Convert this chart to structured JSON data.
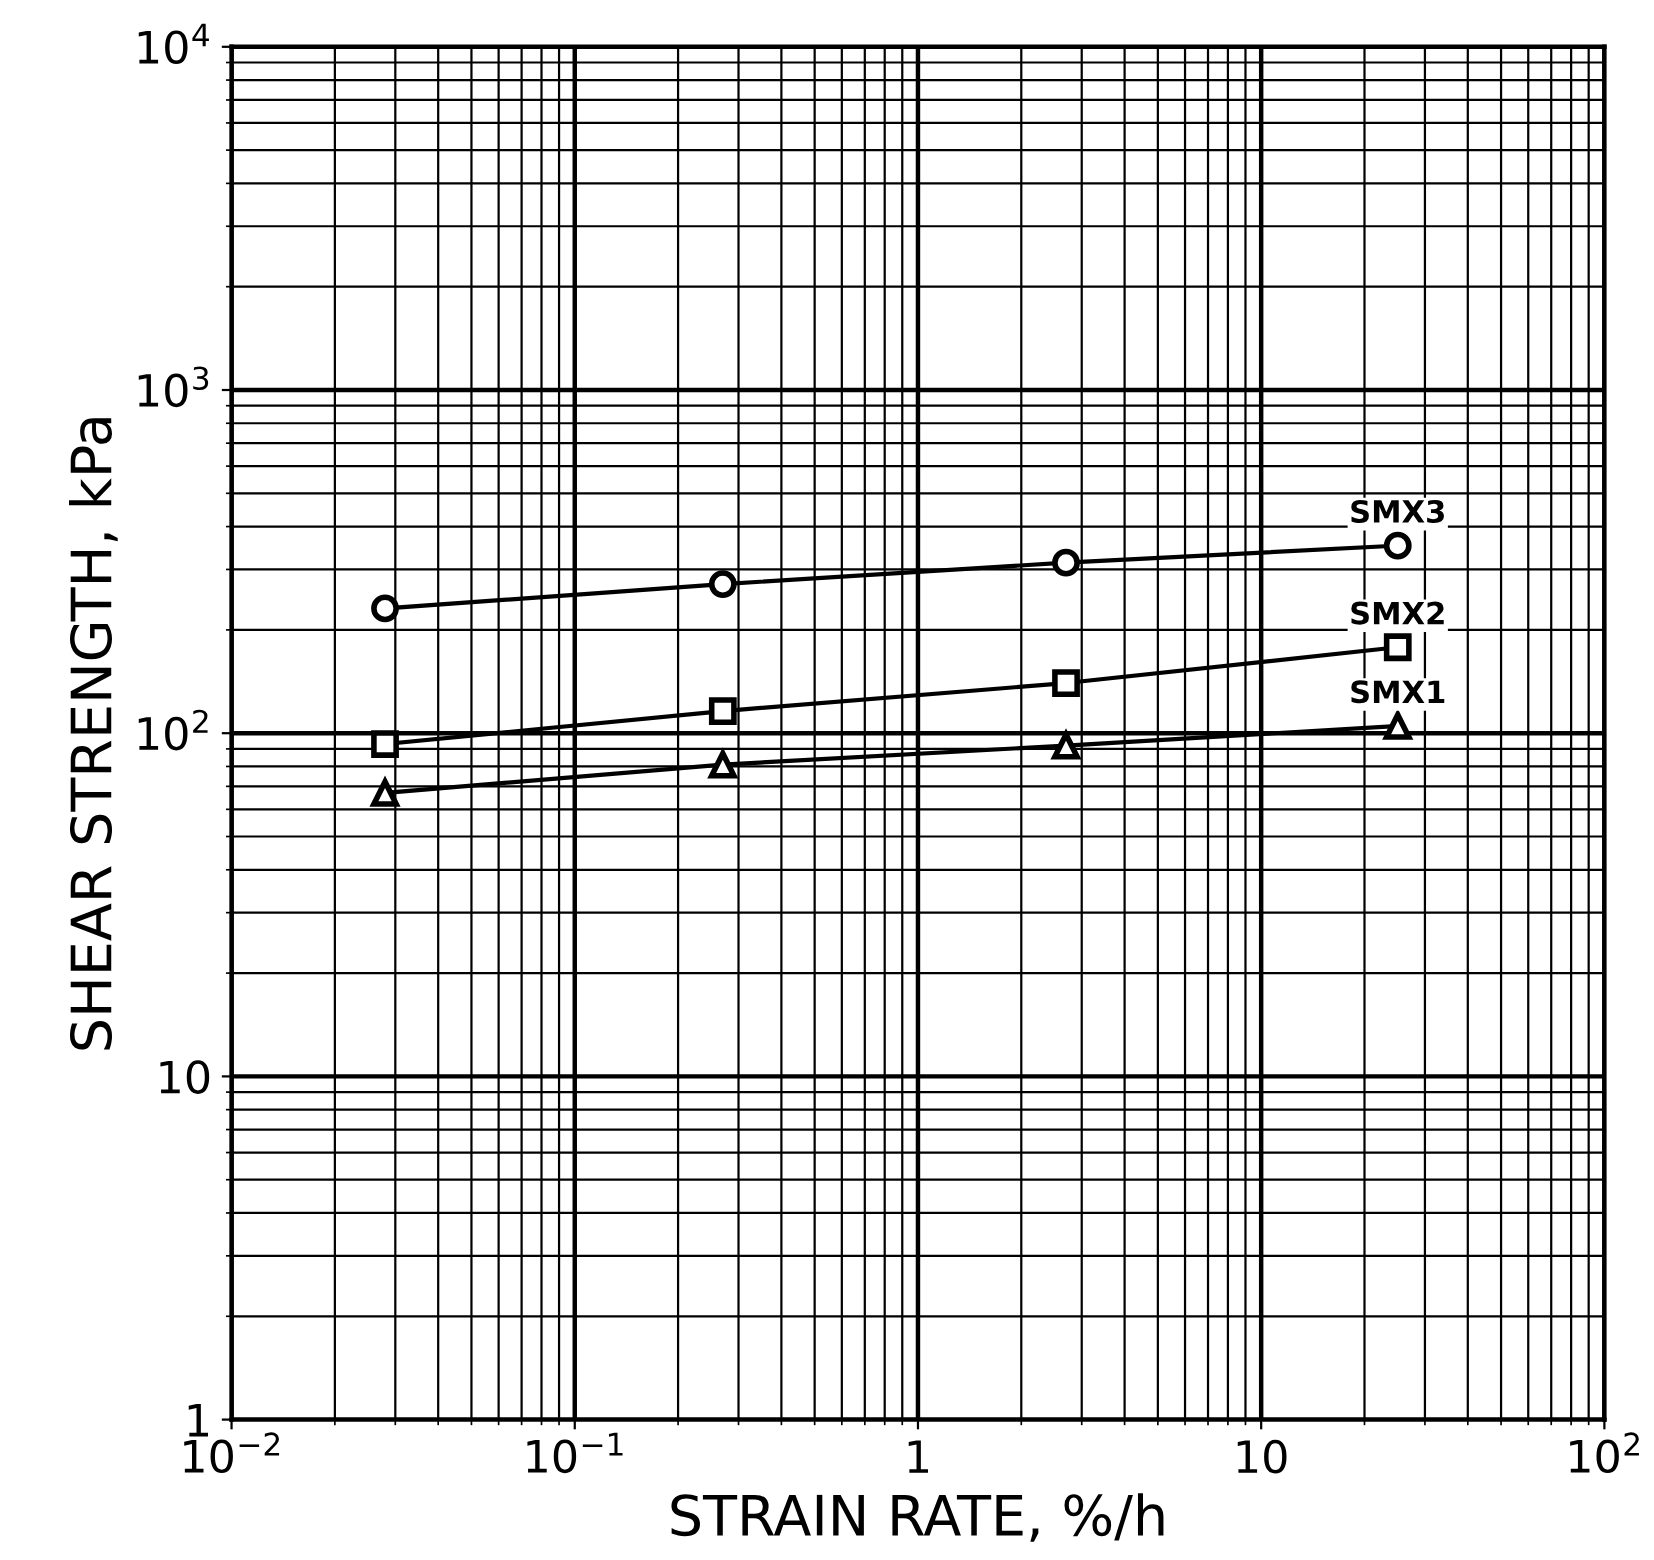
{
  "chart_data": {
    "type": "line",
    "xlabel": "STRAIN RATE, %/h",
    "ylabel": "SHEAR STRENGTH, kPa",
    "log": "xy",
    "grid": true,
    "legend": false,
    "line_style": "solid",
    "xlim": [
      0.01,
      100
    ],
    "ylim": [
      1,
      10000
    ],
    "xticks": [
      {
        "value": 0.01,
        "label": "10$^{−2}$"
      },
      {
        "value": 0.1,
        "label": "10$^{−1}$"
      },
      1,
      10,
      {
        "value": 100,
        "label": "10$^{2}$"
      }
    ],
    "yticks": [
      1,
      10,
      {
        "value": 100,
        "label": "10$^{2}$"
      },
      {
        "value": 1000,
        "label": "10$^{3}$"
      },
      {
        "value": 10000,
        "label": "10$^{4}$"
      }
    ],
    "x": [
      0.028,
      0.27,
      2.7,
      25
    ],
    "series": [
      {
        "name": "SMX3",
        "color": "#000000",
        "marker": "circle",
        "values": [
          231,
          272,
          314,
          352
        ]
      },
      {
        "name": "SMX2",
        "color": "#000000",
        "marker": "square",
        "values": [
          93,
          116,
          140,
          178
        ]
      },
      {
        "name": "SMX1",
        "color": "#000000",
        "marker": "triangle",
        "values": [
          67,
          81,
          92,
          105
        ]
      }
    ]
  }
}
